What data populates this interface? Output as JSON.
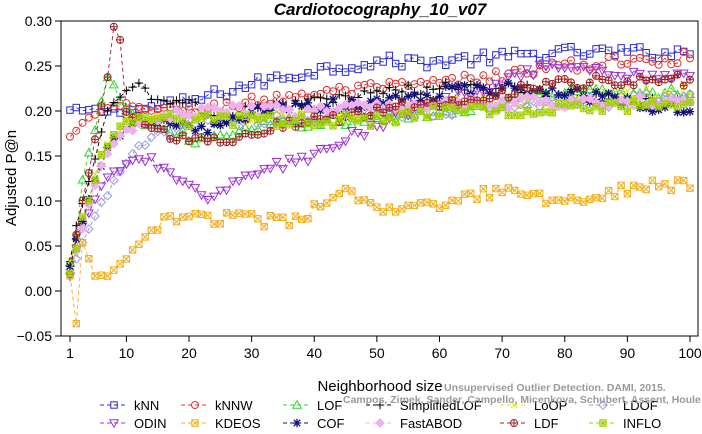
{
  "chart_data": {
    "type": "line",
    "title": "Cardiotocography_10_v07",
    "xlabel": "Neighborhood size",
    "ylabel": "Adjusted P@n",
    "xlim": [
      0,
      100
    ],
    "ylim": [
      -0.05,
      0.3
    ],
    "xticks": [
      1,
      10,
      20,
      30,
      40,
      50,
      60,
      70,
      80,
      90,
      100
    ],
    "xtick_labels": [
      "1",
      "10",
      "20",
      "30",
      "40",
      "50",
      "60",
      "70",
      "80",
      "90",
      "100"
    ],
    "yticks": [
      -0.05,
      0.0,
      0.05,
      0.1,
      0.15,
      0.2,
      0.25,
      0.3
    ],
    "ytick_labels": [
      "−0.05",
      "0.00",
      "0.05",
      "0.10",
      "0.15",
      "0.20",
      "0.25",
      "0.30"
    ],
    "grid": false,
    "legend_position": "bottom",
    "credit_line1": "Unsupervised Outlier Detection. DAMI, 2015.",
    "credit_line2": "Campos, Zimek, Sander, Campello, Micenkova, Schubert, Assent, Houle",
    "series": [
      {
        "name": "kNN",
        "color": "#2a2ad0",
        "marker": "square",
        "keypoints": [
          [
            1,
            0.2
          ],
          [
            2,
            0.2
          ],
          [
            5,
            0.2
          ],
          [
            10,
            0.2
          ],
          [
            20,
            0.21
          ],
          [
            30,
            0.23
          ],
          [
            40,
            0.245
          ],
          [
            50,
            0.255
          ],
          [
            60,
            0.255
          ],
          [
            70,
            0.26
          ],
          [
            80,
            0.265
          ],
          [
            90,
            0.265
          ],
          [
            100,
            0.265
          ]
        ]
      },
      {
        "name": "kNNW",
        "color": "#e03030",
        "marker": "circle",
        "keypoints": [
          [
            1,
            0.17
          ],
          [
            2,
            0.18
          ],
          [
            4,
            0.19
          ],
          [
            6,
            0.2
          ],
          [
            10,
            0.205
          ],
          [
            20,
            0.2
          ],
          [
            30,
            0.21
          ],
          [
            40,
            0.22
          ],
          [
            50,
            0.225
          ],
          [
            60,
            0.23
          ],
          [
            70,
            0.24
          ],
          [
            80,
            0.25
          ],
          [
            90,
            0.255
          ],
          [
            100,
            0.26
          ]
        ]
      },
      {
        "name": "LOF",
        "color": "#2ad82a",
        "marker": "triangle",
        "keypoints": [
          [
            1,
            0.03
          ],
          [
            2,
            0.06
          ],
          [
            3,
            0.12
          ],
          [
            5,
            0.18
          ],
          [
            7,
            0.24
          ],
          [
            10,
            0.2
          ],
          [
            15,
            0.18
          ],
          [
            20,
            0.17
          ],
          [
            25,
            0.17
          ],
          [
            30,
            0.18
          ],
          [
            40,
            0.19
          ],
          [
            50,
            0.19
          ],
          [
            60,
            0.2
          ],
          [
            70,
            0.21
          ],
          [
            80,
            0.22
          ],
          [
            90,
            0.22
          ],
          [
            100,
            0.22
          ]
        ]
      },
      {
        "name": "SimplifiedLOF",
        "color": "#000000",
        "marker": "plus",
        "keypoints": [
          [
            1,
            0.03
          ],
          [
            2,
            0.07
          ],
          [
            3,
            0.1
          ],
          [
            5,
            0.15
          ],
          [
            7,
            0.2
          ],
          [
            10,
            0.22
          ],
          [
            12,
            0.23
          ],
          [
            15,
            0.21
          ],
          [
            20,
            0.21
          ],
          [
            25,
            0.19
          ],
          [
            30,
            0.2
          ],
          [
            40,
            0.21
          ],
          [
            50,
            0.22
          ],
          [
            60,
            0.225
          ],
          [
            70,
            0.23
          ],
          [
            80,
            0.22
          ],
          [
            90,
            0.21
          ],
          [
            100,
            0.21
          ]
        ]
      },
      {
        "name": "LoOP",
        "color": "#e8e800",
        "marker": "x",
        "keypoints": [
          [
            1,
            0.03
          ],
          [
            3,
            0.08
          ],
          [
            6,
            0.15
          ],
          [
            10,
            0.19
          ],
          [
            20,
            0.19
          ],
          [
            30,
            0.19
          ],
          [
            40,
            0.2
          ],
          [
            50,
            0.2
          ],
          [
            60,
            0.21
          ],
          [
            70,
            0.21
          ],
          [
            80,
            0.21
          ],
          [
            90,
            0.22
          ],
          [
            100,
            0.22
          ]
        ]
      },
      {
        "name": "LDOF",
        "color": "#9a9ae0",
        "marker": "diamond",
        "keypoints": [
          [
            1,
            0.02
          ],
          [
            4,
            0.07
          ],
          [
            8,
            0.12
          ],
          [
            12,
            0.16
          ],
          [
            20,
            0.19
          ],
          [
            30,
            0.19
          ],
          [
            40,
            0.19
          ],
          [
            50,
            0.2
          ],
          [
            60,
            0.2
          ],
          [
            70,
            0.21
          ],
          [
            80,
            0.21
          ],
          [
            90,
            0.21
          ],
          [
            100,
            0.22
          ]
        ]
      },
      {
        "name": "ODIN",
        "color": "#9c30d8",
        "marker": "triangle-down",
        "keypoints": [
          [
            1,
            0.02
          ],
          [
            3,
            0.07
          ],
          [
            6,
            0.12
          ],
          [
            10,
            0.14
          ],
          [
            14,
            0.15
          ],
          [
            18,
            0.12
          ],
          [
            22,
            0.105
          ],
          [
            26,
            0.115
          ],
          [
            30,
            0.13
          ],
          [
            35,
            0.14
          ],
          [
            40,
            0.15
          ],
          [
            45,
            0.17
          ],
          [
            50,
            0.18
          ],
          [
            55,
            0.2
          ],
          [
            60,
            0.21
          ],
          [
            65,
            0.22
          ],
          [
            70,
            0.23
          ],
          [
            75,
            0.245
          ],
          [
            80,
            0.245
          ],
          [
            90,
            0.24
          ],
          [
            100,
            0.24
          ]
        ]
      },
      {
        "name": "KDEOS",
        "color": "#f0b020",
        "marker": "boxed-x",
        "keypoints": [
          [
            1,
            0.02
          ],
          [
            2,
            -0.04
          ],
          [
            3,
            0.05
          ],
          [
            5,
            0.02
          ],
          [
            8,
            0.02
          ],
          [
            12,
            0.05
          ],
          [
            16,
            0.08
          ],
          [
            20,
            0.085
          ],
          [
            25,
            0.08
          ],
          [
            30,
            0.08
          ],
          [
            35,
            0.075
          ],
          [
            40,
            0.09
          ],
          [
            45,
            0.11
          ],
          [
            50,
            0.09
          ],
          [
            55,
            0.09
          ],
          [
            60,
            0.095
          ],
          [
            65,
            0.105
          ],
          [
            70,
            0.11
          ],
          [
            75,
            0.105
          ],
          [
            80,
            0.1
          ],
          [
            85,
            0.105
          ],
          [
            90,
            0.115
          ],
          [
            95,
            0.12
          ],
          [
            100,
            0.115
          ]
        ]
      },
      {
        "name": "COF",
        "color": "#10107a",
        "marker": "asterisk",
        "keypoints": [
          [
            1,
            0.03
          ],
          [
            2,
            0.06
          ],
          [
            4,
            0.1
          ],
          [
            7,
            0.16
          ],
          [
            10,
            0.18
          ],
          [
            15,
            0.19
          ],
          [
            20,
            0.18
          ],
          [
            25,
            0.18
          ],
          [
            30,
            0.2
          ],
          [
            40,
            0.205
          ],
          [
            50,
            0.21
          ],
          [
            60,
            0.22
          ],
          [
            70,
            0.225
          ],
          [
            80,
            0.22
          ],
          [
            90,
            0.21
          ],
          [
            100,
            0.2
          ]
        ]
      },
      {
        "name": "FastABOD",
        "color": "#f0b0f0",
        "marker": "diamond-filled",
        "keypoints": [
          [
            1,
            0.02
          ],
          [
            3,
            0.07
          ],
          [
            6,
            0.14
          ],
          [
            10,
            0.18
          ],
          [
            20,
            0.2
          ],
          [
            30,
            0.2
          ],
          [
            40,
            0.2
          ],
          [
            50,
            0.205
          ],
          [
            60,
            0.21
          ],
          [
            70,
            0.21
          ],
          [
            80,
            0.21
          ],
          [
            90,
            0.21
          ],
          [
            100,
            0.21
          ]
        ]
      },
      {
        "name": "LDF",
        "color": "#a02020",
        "marker": "circle-plus",
        "keypoints": [
          [
            1,
            0.02
          ],
          [
            3,
            0.1
          ],
          [
            5,
            0.17
          ],
          [
            7,
            0.24
          ],
          [
            8,
            0.29
          ],
          [
            9,
            0.28
          ],
          [
            10,
            0.2
          ],
          [
            15,
            0.18
          ],
          [
            20,
            0.165
          ],
          [
            25,
            0.17
          ],
          [
            30,
            0.175
          ],
          [
            40,
            0.19
          ],
          [
            50,
            0.2
          ],
          [
            60,
            0.21
          ],
          [
            70,
            0.22
          ],
          [
            80,
            0.23
          ],
          [
            90,
            0.235
          ],
          [
            100,
            0.235
          ]
        ]
      },
      {
        "name": "INFLO",
        "color": "#a0d000",
        "marker": "boxed-asterisk",
        "keypoints": [
          [
            1,
            0.02
          ],
          [
            3,
            0.08
          ],
          [
            6,
            0.15
          ],
          [
            10,
            0.19
          ],
          [
            20,
            0.19
          ],
          [
            30,
            0.19
          ],
          [
            40,
            0.19
          ],
          [
            50,
            0.19
          ],
          [
            60,
            0.2
          ],
          [
            70,
            0.2
          ],
          [
            80,
            0.205
          ],
          [
            90,
            0.205
          ],
          [
            100,
            0.21
          ]
        ]
      }
    ]
  }
}
